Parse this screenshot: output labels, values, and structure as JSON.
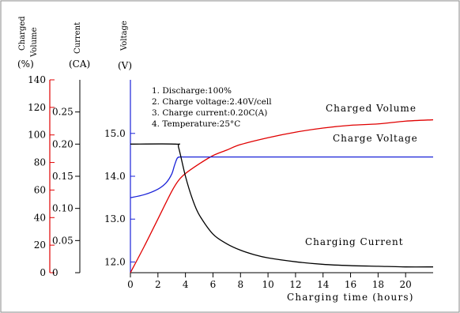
{
  "chart_data": {
    "type": "line",
    "xlabel": "Charging time (hours)",
    "x_ticks": [
      "0",
      "2",
      "4",
      "6",
      "8",
      "10",
      "12",
      "14",
      "16",
      "18",
      "20"
    ],
    "xlim": [
      0,
      22
    ],
    "axes": {
      "charged_volume": {
        "label": "Charged",
        "sublabel": "Volume",
        "unit": "(%)",
        "ticks": [
          "0",
          "20",
          "40",
          "60",
          "80",
          "100",
          "120",
          "140"
        ],
        "ylim": [
          0,
          140
        ],
        "color": "#e00000"
      },
      "current": {
        "label": "Current",
        "unit": "(CA)",
        "ticks": [
          "0",
          "0.05",
          "0.10",
          "0.15",
          "0.20",
          "0.25"
        ],
        "ylim": [
          0,
          0.3
        ]
      },
      "voltage": {
        "label": "Voltage",
        "unit": "(V)",
        "ticks": [
          "12.0",
          "13.0",
          "14.0",
          "15.0"
        ],
        "ylim": [
          11.75,
          16.25
        ],
        "color": "#1a22d8"
      }
    },
    "notes": [
      "1. Discharge:100%",
      "2. Charge voltage:2.40V/cell",
      "3. Charge current:0.20C(A)",
      "4. Temperature:25°C"
    ],
    "series": [
      {
        "name": "Charged Volume",
        "axis": "charged_volume",
        "color": "#e00000",
        "x": [
          0,
          1,
          2,
          3,
          3.5,
          4,
          5,
          6,
          7,
          8,
          10,
          12,
          14,
          16,
          18,
          20,
          22
        ],
        "y": [
          0,
          19,
          39,
          59,
          67,
          72,
          79,
          85,
          89,
          93,
          98,
          102,
          105,
          107,
          108,
          110,
          111
        ]
      },
      {
        "name": "Charge Voltage",
        "axis": "voltage",
        "color": "#1a22d8",
        "x": [
          0,
          1,
          2,
          2.6,
          3,
          3.2,
          3.4,
          3.6,
          4,
          6,
          10,
          14,
          18,
          22
        ],
        "y": [
          13.5,
          13.57,
          13.7,
          13.85,
          14.05,
          14.25,
          14.42,
          14.45,
          14.45,
          14.45,
          14.45,
          14.45,
          14.45,
          14.45
        ]
      },
      {
        "name": "Charging Current",
        "axis": "current",
        "color": "#000000",
        "x": [
          0,
          3.3,
          3.5,
          4,
          4.5,
          5,
          6,
          7,
          8,
          9,
          10,
          12,
          14,
          16,
          18,
          20,
          22
        ],
        "y": [
          0.2,
          0.2,
          0.195,
          0.15,
          0.115,
          0.09,
          0.06,
          0.045,
          0.035,
          0.028,
          0.023,
          0.017,
          0.013,
          0.011,
          0.01,
          0.009,
          0.009
        ]
      }
    ]
  }
}
